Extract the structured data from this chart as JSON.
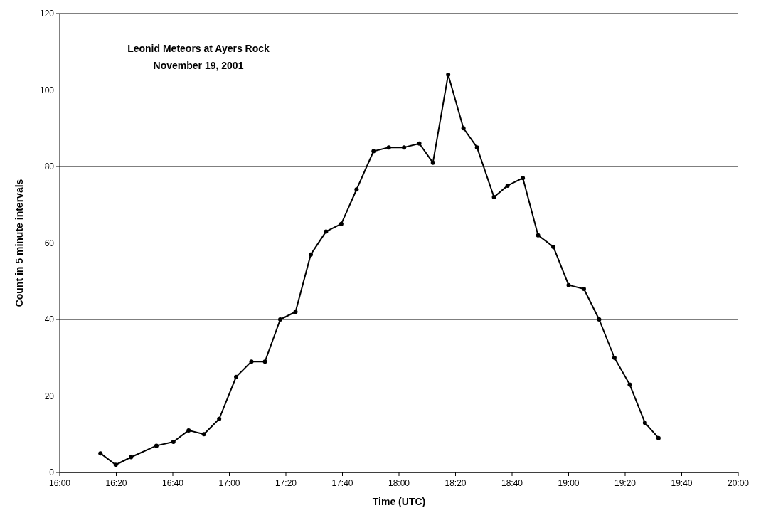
{
  "chart_data": {
    "type": "line",
    "title": "Leonid Meteors at Ayers Rock",
    "subtitle": "November 19, 2001",
    "xlabel": "Time (UTC)",
    "ylabel": "Count in 5 minute intervals",
    "x": [
      16.24,
      16.33,
      16.42,
      16.57,
      16.67,
      16.76,
      16.85,
      16.94,
      17.04,
      17.13,
      17.21,
      17.3,
      17.39,
      17.48,
      17.57,
      17.66,
      17.75,
      17.85,
      17.94,
      18.03,
      18.12,
      18.2,
      18.29,
      18.38,
      18.46,
      18.56,
      18.64,
      18.73,
      18.82,
      18.91,
      19.0,
      19.09,
      19.18,
      19.27,
      19.36,
      19.45,
      19.53
    ],
    "series": [
      {
        "color": "#000000",
        "values": [
          5,
          2,
          4,
          7,
          8,
          11,
          10,
          14,
          25,
          29,
          29,
          40,
          42,
          57,
          63,
          65,
          74,
          84,
          85,
          85,
          86,
          81,
          104,
          90,
          85,
          72,
          75,
          77,
          62,
          59,
          49,
          48,
          40,
          30,
          23,
          13,
          9
        ]
      }
    ],
    "xlim": [
      16,
      20
    ],
    "xticks": [
      {
        "value": 16,
        "label": "16:00"
      },
      {
        "value": 16.3333,
        "label": "16:20"
      },
      {
        "value": 16.6667,
        "label": "16:40"
      },
      {
        "value": 17,
        "label": "17:00"
      },
      {
        "value": 17.3333,
        "label": "17:20"
      },
      {
        "value": 17.6667,
        "label": "17:40"
      },
      {
        "value": 18,
        "label": "18:00"
      },
      {
        "value": 18.3333,
        "label": "18:20"
      },
      {
        "value": 18.6667,
        "label": "18:40"
      },
      {
        "value": 19,
        "label": "19:00"
      },
      {
        "value": 19.3333,
        "label": "19:20"
      },
      {
        "value": 19.6667,
        "label": "19:40"
      },
      {
        "value": 20,
        "label": "20:00"
      }
    ],
    "ylim": [
      0,
      120
    ],
    "yticks": [
      0,
      20,
      40,
      60,
      80,
      100,
      120
    ],
    "grid": "y",
    "marker": "circle",
    "line_style": "solid"
  }
}
